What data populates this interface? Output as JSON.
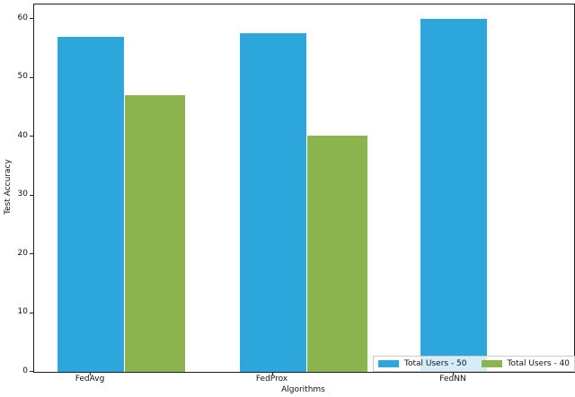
{
  "chart_data": {
    "type": "bar",
    "title": "",
    "xlabel": "Algorithms",
    "ylabel": "Test Accuracy",
    "categories": [
      "FedAvg",
      "FedProx",
      "FedNN"
    ],
    "series": [
      {
        "name": "Total Users - 50",
        "color": "#2ca6db",
        "values": [
          57.0,
          57.6,
          60.0
        ]
      },
      {
        "name": "Total Users - 40",
        "color": "#8cb44e",
        "values": [
          47.0,
          40.2,
          0
        ]
      }
    ],
    "ylim": [
      0,
      62.5
    ],
    "yticks": [
      0,
      10,
      20,
      30,
      40,
      50,
      60
    ],
    "grid": false,
    "legend_position": "lower right"
  },
  "legend": {
    "entries": [
      {
        "label": "Total Users - 50",
        "swatch": "#2ca6db"
      },
      {
        "label": "Total Users - 40",
        "swatch": "#8cb44e"
      }
    ]
  },
  "colors": {
    "spine": "#1f1f1f",
    "background": "#ffffff",
    "legend_border": "#cccccc"
  }
}
